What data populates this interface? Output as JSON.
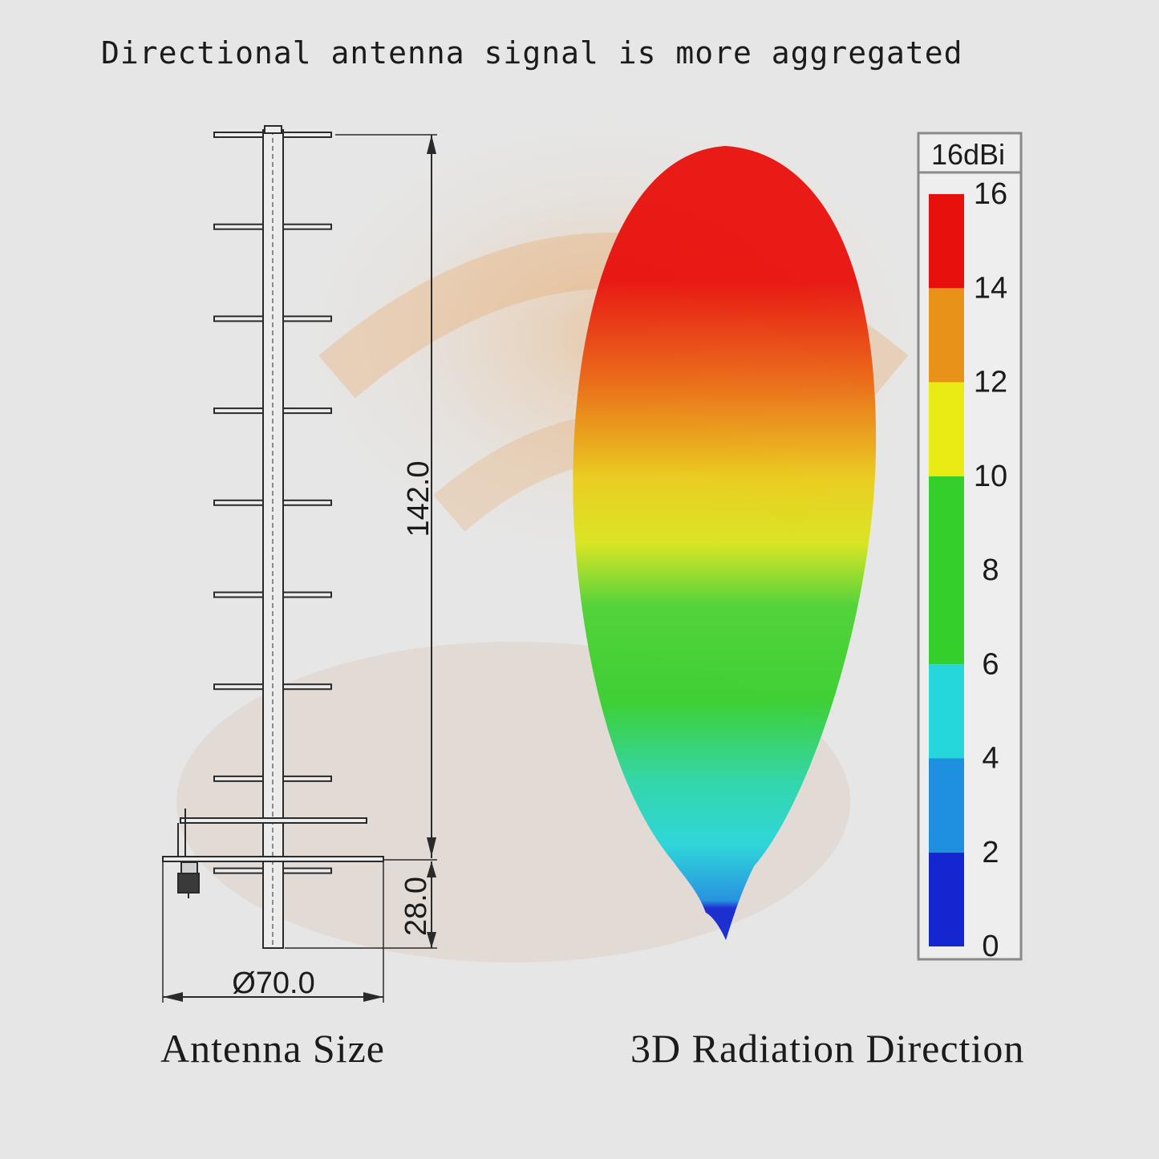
{
  "headline": "Directional antenna signal is more aggregated",
  "drawing": {
    "caption": "Antenna Size",
    "dim_length": "142.0",
    "dim_base": "28.0",
    "dim_diameter": "Ø70.0",
    "element_count": 9
  },
  "radiation": {
    "caption": "3D Radiation Direction",
    "scale_title": "16dBi",
    "scale_ticks": [
      "16",
      "14",
      "12",
      "10",
      "8",
      "6",
      "4",
      "2",
      "0"
    ],
    "colors": {
      "red": "#e8100c",
      "orange": "#e8921a",
      "yellow": "#eaea14",
      "green": "#35cf2c",
      "cyan": "#25d6da",
      "blue_light": "#1f8fe0",
      "blue_dark": "#1426d0"
    }
  }
}
